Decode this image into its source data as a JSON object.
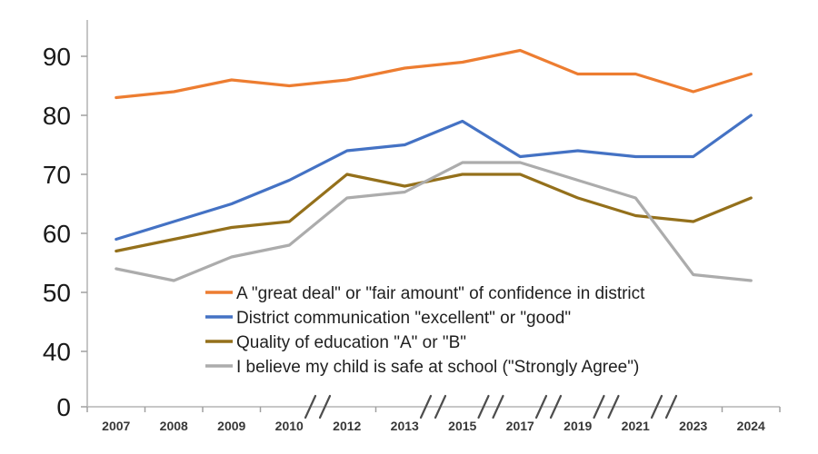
{
  "chart_data": {
    "type": "line",
    "title": "",
    "x_labels": [
      "2007",
      "2008",
      "2009",
      "2010",
      "2012",
      "2013",
      "2015",
      "2017",
      "2019",
      "2021",
      "2023",
      "2024"
    ],
    "series": [
      {
        "name": "A \"great deal\" or \"fair amount\" of confidence in district",
        "color": "#ED7D31",
        "values": [
          83,
          84,
          86,
          85,
          86,
          88,
          89,
          91,
          87,
          87,
          84,
          87
        ]
      },
      {
        "name": "District communication \"excellent\" or \"good\"",
        "color": "#4472C4",
        "values": [
          59,
          62,
          65,
          69,
          74,
          75,
          79,
          73,
          74,
          73,
          73,
          80
        ]
      },
      {
        "name": "Quality of education \"A\" or \"B\"",
        "color": "#94701B",
        "values": [
          57,
          59,
          61,
          62,
          70,
          68,
          70,
          70,
          66,
          63,
          62,
          66
        ]
      },
      {
        "name": "I believe my child is safe at school (\"Strongly Agree\")",
        "color": "#ACACAC",
        "values": [
          54,
          52,
          56,
          58,
          66,
          67,
          72,
          72,
          69,
          66,
          53,
          52
        ]
      }
    ],
    "y_ticks": [
      0,
      40,
      50,
      60,
      70,
      80,
      90
    ],
    "y_axis": {
      "range_shown": [
        40,
        95
      ],
      "compressed_below": 40
    },
    "x_axis_breaks_after": [
      "2010",
      "2013",
      "2015",
      "2017",
      "2019",
      "2021"
    ],
    "legend_position": "inside-bottom-center",
    "grid": false,
    "colors": {
      "background": "#FFFFFF",
      "axis_line": "#BFBFBF",
      "tick_mark": "#A0A0A0",
      "break_mark": "#4D4D4D",
      "y_label_text": "#1A1A1A",
      "x_label_text": "#383838",
      "legend_text": "#1F1F1F"
    }
  }
}
